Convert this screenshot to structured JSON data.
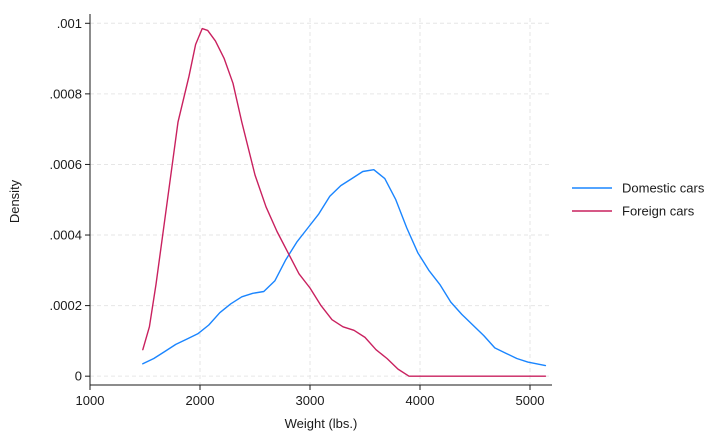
{
  "chart_data": {
    "type": "line",
    "title": "",
    "xlabel": "Weight (lbs.)",
    "ylabel": "Density",
    "xlim": [
      1000,
      5200
    ],
    "ylim": [
      0,
      0.001
    ],
    "xticks": [
      1000,
      2000,
      3000,
      4000,
      5000
    ],
    "xtick_labels": [
      "1000",
      "2000",
      "3000",
      "4000",
      "5000"
    ],
    "yticks": [
      0,
      0.0002,
      0.0004,
      0.0006,
      0.0008,
      0.001
    ],
    "ytick_labels": [
      "0",
      ".0002",
      ".0004",
      ".0006",
      ".0008",
      ".001"
    ],
    "grid": true,
    "legend_position": "right",
    "series": [
      {
        "name": "Domestic cars",
        "color": "#1a85ff",
        "x": [
          1480,
          1580,
          1680,
          1780,
          1880,
          1980,
          2080,
          2180,
          2280,
          2380,
          2480,
          2580,
          2680,
          2780,
          2880,
          2980,
          3080,
          3180,
          3280,
          3380,
          3480,
          3580,
          3680,
          3780,
          3880,
          3980,
          4080,
          4180,
          4280,
          4380,
          4480,
          4580,
          4680,
          4780,
          4880,
          4980,
          5140
        ],
        "y": [
          3.5e-05,
          5e-05,
          7e-05,
          9e-05,
          0.000105,
          0.00012,
          0.000145,
          0.00018,
          0.000205,
          0.000225,
          0.000235,
          0.00024,
          0.00027,
          0.00033,
          0.00038,
          0.00042,
          0.00046,
          0.00051,
          0.00054,
          0.00056,
          0.00058,
          0.000585,
          0.00056,
          0.0005,
          0.00042,
          0.00035,
          0.0003,
          0.00026,
          0.00021,
          0.000175,
          0.000145,
          0.000115,
          8e-05,
          6.5e-05,
          5e-05,
          4e-05,
          3e-05
        ]
      },
      {
        "name": "Foreign cars",
        "color": "#c9215f",
        "x": [
          1480,
          1540,
          1600,
          1700,
          1800,
          1900,
          1960,
          2020,
          2070,
          2140,
          2220,
          2300,
          2380,
          2500,
          2600,
          2700,
          2800,
          2900,
          3000,
          3100,
          3200,
          3300,
          3400,
          3500,
          3600,
          3700,
          3800,
          3900,
          4000,
          4200,
          4500,
          5140
        ],
        "y": [
          7.5e-05,
          0.00014,
          0.00026,
          0.00049,
          0.00072,
          0.00085,
          0.00094,
          0.000985,
          0.00098,
          0.00095,
          0.0009,
          0.00083,
          0.00072,
          0.00057,
          0.00048,
          0.00041,
          0.00035,
          0.00029,
          0.00025,
          0.0002,
          0.00016,
          0.00014,
          0.00013,
          0.00011,
          7.5e-05,
          5e-05,
          2e-05,
          0.0,
          0.0,
          0.0,
          0.0,
          0.0
        ]
      }
    ]
  }
}
